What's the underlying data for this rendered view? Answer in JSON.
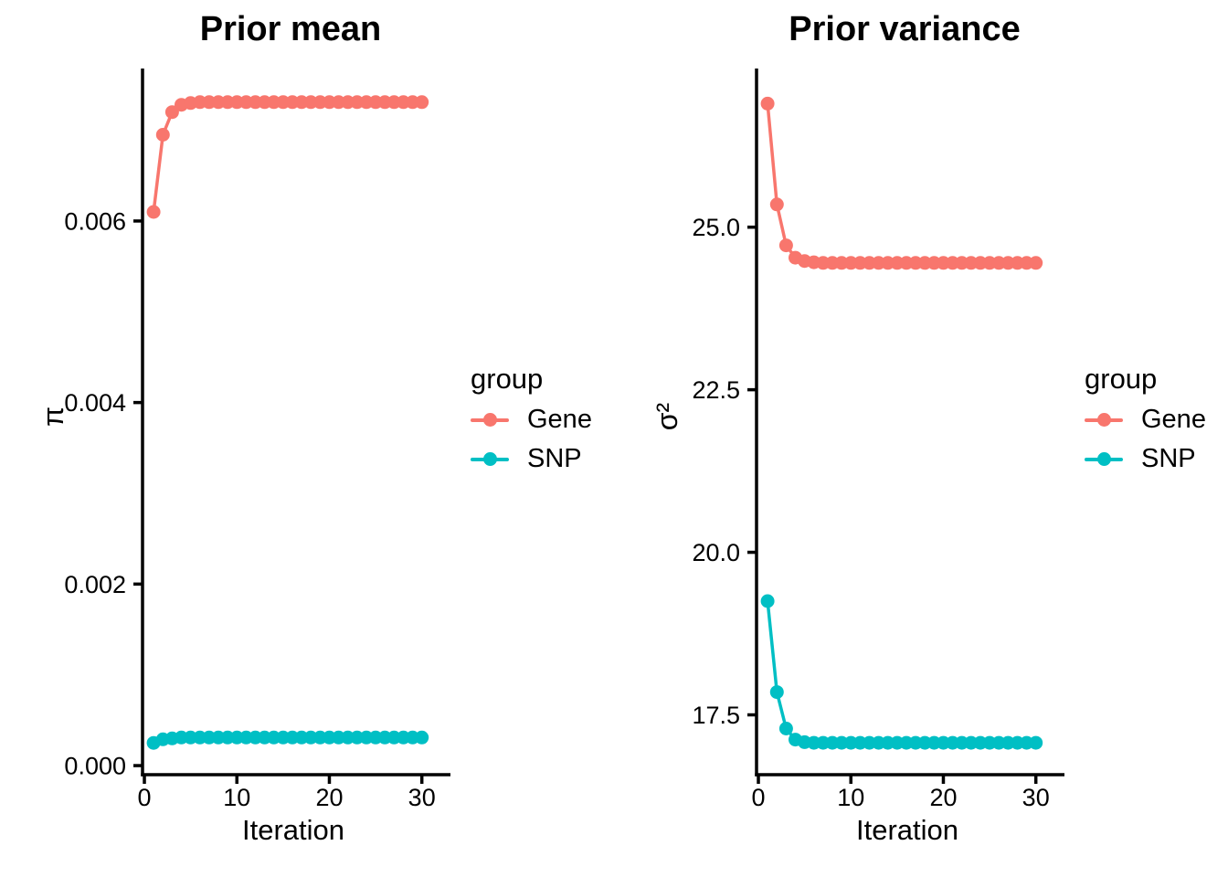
{
  "legend": {
    "title": "group",
    "items": [
      {
        "label": "Gene",
        "color": "#F8766D"
      },
      {
        "label": "SNP",
        "color": "#00BFC4"
      }
    ]
  },
  "chart_data": [
    {
      "type": "line",
      "title": "Prior mean",
      "xlabel": "Iteration",
      "ylabel": "π",
      "grid": false,
      "legend_position": "right",
      "xlim": [
        -0.2,
        32.4
      ],
      "ylim": [
        -0.0001,
        0.00768
      ],
      "x_ticks": {
        "values": [
          0,
          10,
          20,
          30
        ],
        "labels": [
          "0",
          "10",
          "20",
          "30"
        ]
      },
      "y_ticks": {
        "values": [
          0,
          0.002,
          0.004,
          0.006
        ],
        "labels": [
          "0.000",
          "0.002",
          "0.004",
          "0.006"
        ]
      },
      "x": [
        1,
        2,
        3,
        4,
        5,
        6,
        7,
        8,
        9,
        10,
        11,
        12,
        13,
        14,
        15,
        16,
        17,
        18,
        19,
        20,
        21,
        22,
        23,
        24,
        25,
        26,
        27,
        28,
        29,
        30
      ],
      "series": [
        {
          "name": "Gene",
          "color": "#F8766D",
          "values": [
            0.0061,
            0.00695,
            0.0072,
            0.00728,
            0.0073,
            0.00731,
            0.00731,
            0.00731,
            0.00731,
            0.00731,
            0.00731,
            0.00731,
            0.00731,
            0.00731,
            0.00731,
            0.00731,
            0.00731,
            0.00731,
            0.00731,
            0.00731,
            0.00731,
            0.00731,
            0.00731,
            0.00731,
            0.00731,
            0.00731,
            0.00731,
            0.00731,
            0.00731,
            0.00731
          ]
        },
        {
          "name": "SNP",
          "color": "#00BFC4",
          "values": [
            0.00025,
            0.00029,
            0.0003,
            0.00031,
            0.00031,
            0.00031,
            0.00031,
            0.00031,
            0.00031,
            0.00031,
            0.00031,
            0.00031,
            0.00031,
            0.00031,
            0.00031,
            0.00031,
            0.00031,
            0.00031,
            0.00031,
            0.00031,
            0.00031,
            0.00031,
            0.00031,
            0.00031,
            0.00031,
            0.00031,
            0.00031,
            0.00031,
            0.00031,
            0.00031
          ]
        }
      ]
    },
    {
      "type": "line",
      "title": "Prior variance",
      "xlabel": "Iteration",
      "ylabel": "σ²",
      "grid": false,
      "legend_position": "right",
      "xlim": [
        -0.2,
        32.4
      ],
      "ylim": [
        16.58,
        27.44
      ],
      "x_ticks": {
        "values": [
          0,
          10,
          20,
          30
        ],
        "labels": [
          "0",
          "10",
          "20",
          "30"
        ]
      },
      "y_ticks": {
        "values": [
          17.5,
          20.0,
          22.5,
          25.0
        ],
        "labels": [
          "17.5",
          "20.0",
          "22.5",
          "25.0"
        ]
      },
      "x": [
        1,
        2,
        3,
        4,
        5,
        6,
        7,
        8,
        9,
        10,
        11,
        12,
        13,
        14,
        15,
        16,
        17,
        18,
        19,
        20,
        21,
        22,
        23,
        24,
        25,
        26,
        27,
        28,
        29,
        30
      ],
      "series": [
        {
          "name": "Gene",
          "color": "#F8766D",
          "values": [
            26.9,
            25.35,
            24.72,
            24.53,
            24.48,
            24.46,
            24.45,
            24.45,
            24.45,
            24.45,
            24.45,
            24.45,
            24.45,
            24.45,
            24.45,
            24.45,
            24.45,
            24.45,
            24.45,
            24.45,
            24.45,
            24.45,
            24.45,
            24.45,
            24.45,
            24.45,
            24.45,
            24.45,
            24.45,
            24.45
          ]
        },
        {
          "name": "SNP",
          "color": "#00BFC4",
          "values": [
            19.25,
            17.85,
            17.29,
            17.12,
            17.08,
            17.07,
            17.07,
            17.07,
            17.07,
            17.07,
            17.07,
            17.07,
            17.07,
            17.07,
            17.07,
            17.07,
            17.07,
            17.07,
            17.07,
            17.07,
            17.07,
            17.07,
            17.07,
            17.07,
            17.07,
            17.07,
            17.07,
            17.07,
            17.07,
            17.07
          ]
        }
      ]
    }
  ]
}
